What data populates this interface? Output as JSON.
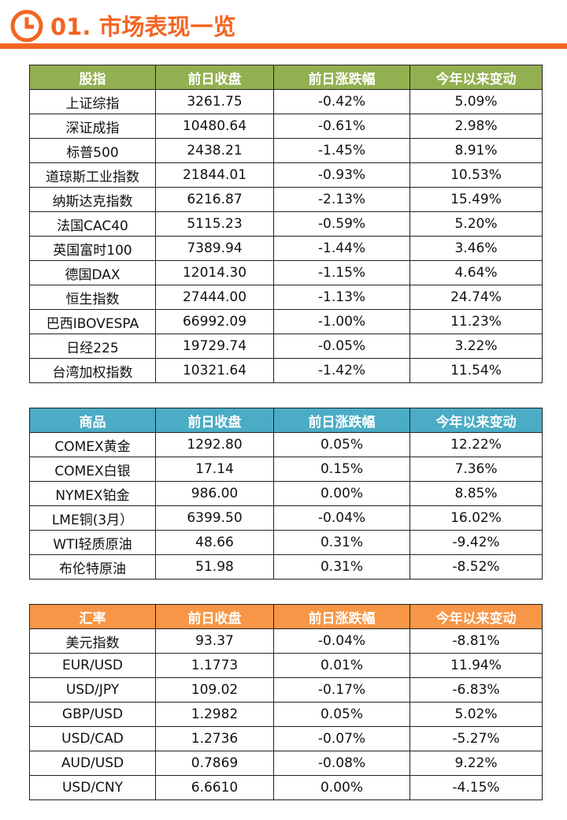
{
  "header": {
    "title": "01. 市场表现一览"
  },
  "tables": [
    {
      "headers": [
        "股指",
        "前日收盘",
        "前日涨跌幅",
        "今年以来变动"
      ],
      "rows": [
        [
          "上证综指",
          "3261.75",
          "-0.42%",
          "5.09%"
        ],
        [
          "深证成指",
          "10480.64",
          "-0.61%",
          "2.98%"
        ],
        [
          "标普500",
          "2438.21",
          "-1.45%",
          "8.91%"
        ],
        [
          "道琼斯工业指数",
          "21844.01",
          "-0.93%",
          "10.53%"
        ],
        [
          "纳斯达克指数",
          "6216.87",
          "-2.13%",
          "15.49%"
        ],
        [
          "法国CAC40",
          "5115.23",
          "-0.59%",
          "5.20%"
        ],
        [
          "英国富时100",
          "7389.94",
          "-1.44%",
          "3.46%"
        ],
        [
          "德国DAX",
          "12014.30",
          "-1.15%",
          "4.64%"
        ],
        [
          "恒生指数",
          "27444.00",
          "-1.13%",
          "24.74%"
        ],
        [
          "巴西IBOVESPA",
          "66992.09",
          "-1.00%",
          "11.23%"
        ],
        [
          "日经225",
          "19729.74",
          "-0.05%",
          "3.22%"
        ],
        [
          "台湾加权指数",
          "10321.64",
          "-1.42%",
          "11.54%"
        ]
      ]
    },
    {
      "headers": [
        "商品",
        "前日收盘",
        "前日涨跌幅",
        "今年以来变动"
      ],
      "rows": [
        [
          "COMEX黄金",
          "1292.80",
          "0.05%",
          "12.22%"
        ],
        [
          "COMEX白银",
          "17.14",
          "0.15%",
          "7.36%"
        ],
        [
          "NYMEX铂金",
          "986.00",
          "0.00%",
          "8.85%"
        ],
        [
          "LME铜(3月）",
          "6399.50",
          "-0.04%",
          "16.02%"
        ],
        [
          "WTI轻质原油",
          "48.66",
          "0.31%",
          "-9.42%"
        ],
        [
          "布伦特原油",
          "51.98",
          "0.31%",
          "-8.52%"
        ]
      ]
    },
    {
      "headers": [
        "汇率",
        "前日收盘",
        "前日涨跌幅",
        "今年以来变动"
      ],
      "rows": [
        [
          "美元指数",
          "93.37",
          "-0.04%",
          "-8.81%"
        ],
        [
          "EUR/USD",
          "1.1773",
          "0.01%",
          "11.94%"
        ],
        [
          "USD/JPY",
          "109.02",
          "-0.17%",
          "-6.83%"
        ],
        [
          "GBP/USD",
          "1.2982",
          "0.05%",
          "5.02%"
        ],
        [
          "USD/CAD",
          "1.2736",
          "-0.07%",
          "-5.27%"
        ],
        [
          "AUD/USD",
          "0.7869",
          "-0.08%",
          "9.22%"
        ],
        [
          "USD/CNY",
          "6.6610",
          "0.00%",
          "-4.15%"
        ]
      ]
    }
  ]
}
